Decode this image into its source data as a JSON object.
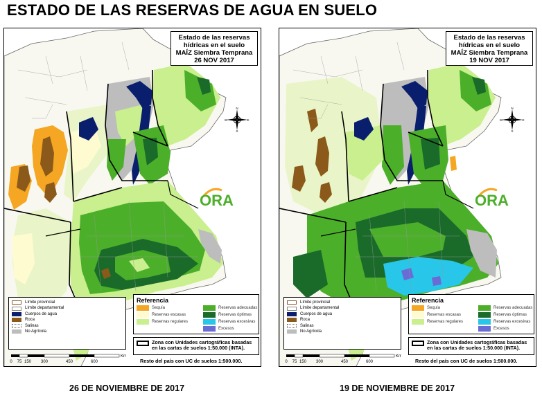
{
  "page_title": "ESTADO DE LAS RESERVAS DE AGUA EN SUELO",
  "panels": [
    {
      "info": {
        "line1": "Estado de las reservas",
        "line2": "hídricas en el suelo",
        "line3": "MAÍZ Siembra Temprana",
        "date": "26 NOV 2017"
      },
      "caption": "26 DE NOVIEMBRE DE 2017",
      "variant": "left"
    },
    {
      "info": {
        "line1": "Estado de las reservas",
        "line2": "hídricas en el suelo",
        "line3": "MAÍZ Siembra Temprana",
        "date": "19 NOV 2017"
      },
      "caption": "19 DE NOVIEMBRE DE 2017",
      "variant": "right"
    }
  ],
  "map_legend": [
    {
      "label": "Límite provincial",
      "color": "#ffffff",
      "border": "#8b5a2b"
    },
    {
      "label": "Límite departamental",
      "color": "#ffffff",
      "border": "#888888"
    },
    {
      "label": "Cuerpos de agua",
      "color": "#0a1e6e",
      "border": "#0a1e6e"
    },
    {
      "label": "Roca",
      "color": "#8b5a1a",
      "border": "#8b5a1a"
    },
    {
      "label": "Salinas",
      "color": "#ffffff",
      "border": "#999999"
    },
    {
      "label": "No Agrícola",
      "color": "#bdbdbd",
      "border": "#bdbdbd"
    }
  ],
  "reference": {
    "title": "Referencia",
    "items": [
      {
        "label": "Sequía",
        "color": "#f5a623"
      },
      {
        "label": "Reservas adecuadas",
        "color": "#4caf2a"
      },
      {
        "label": "Reservas escasas",
        "color": "#fffbd0"
      },
      {
        "label": "Reservas óptimas",
        "color": "#1a6b2a"
      },
      {
        "label": "Reservas regulares",
        "color": "#c9ef8f"
      },
      {
        "label": "Reservas excesivas",
        "color": "#28c6e8"
      },
      {
        "label": "",
        "color": "#ffffff"
      },
      {
        "label": "Excesos",
        "color": "#6b6bd6"
      }
    ]
  },
  "zona": {
    "line1": "Zona con Unidades cartográficas basadas",
    "line2": "en las cartas de suelos 1:50.000 (INTA)."
  },
  "resto": "Resto del país con UC de suelos 1:500.000.",
  "scale": {
    "ticks": [
      "0",
      "75",
      "150",
      "300",
      "450",
      "600"
    ],
    "unit": "Km"
  },
  "logo_text": "ORA",
  "compass": {
    "n": "N",
    "s": "S",
    "e": "E",
    "w": "W"
  },
  "colors": {
    "sequia": "#f5a623",
    "escasas": "#fffbd0",
    "regulares": "#c9ef8f",
    "adecuadas": "#4caf2a",
    "optimas": "#1a6b2a",
    "excesivas": "#28c6e8",
    "excesos": "#6b6bd6",
    "agua": "#0a1e6e",
    "roca": "#8b5a1a",
    "no_agricola": "#bdbdbd"
  }
}
